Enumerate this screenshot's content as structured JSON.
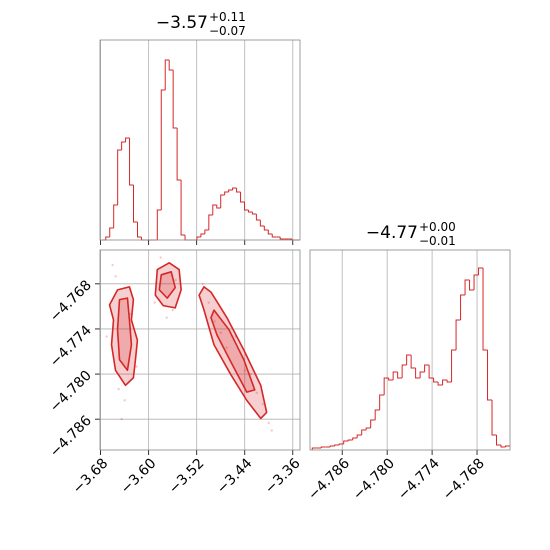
{
  "chart_data": [
    {
      "type": "histogram",
      "title": "−3.57",
      "title_plus": "+0.11",
      "title_minus": "−0.07",
      "color": "#d62728",
      "grid": true,
      "xlim": [
        -3.681,
        -3.348
      ],
      "ylim": [
        0,
        200
      ],
      "xticks": [
        -3.68,
        -3.6,
        -3.52,
        -3.44,
        -3.36
      ],
      "bins": [
        -3.678,
        -3.6714,
        -3.6648,
        -3.6582,
        -3.6516,
        -3.645,
        -3.6384,
        -3.6318,
        -3.6252,
        -3.6186,
        -3.612,
        -3.6054,
        -3.5988,
        -3.5922,
        -3.5856,
        -3.579,
        -3.5724,
        -3.5658,
        -3.5592,
        -3.5526,
        -3.546,
        -3.5394,
        -3.5328,
        -3.5262,
        -3.5196,
        -3.513,
        -3.5064,
        -3.4998,
        -3.4932,
        -3.4866,
        -3.48,
        -3.4734,
        -3.4668,
        -3.4602,
        -3.4536,
        -3.447,
        -3.4404,
        -3.4338,
        -3.4272,
        -3.4206,
        -3.414,
        -3.4074,
        -3.4008,
        -3.3942,
        -3.3876,
        -3.381,
        -3.3744,
        -3.3678,
        -3.3612,
        -3.3546,
        -3.348
      ],
      "counts": [
        0,
        3,
        12,
        35,
        90,
        98,
        102,
        55,
        18,
        3,
        0,
        0,
        0,
        0,
        30,
        150,
        180,
        170,
        112,
        60,
        5,
        0,
        0,
        0,
        3,
        6,
        10,
        25,
        35,
        32,
        45,
        48,
        50,
        52,
        48,
        38,
        30,
        28,
        26,
        20,
        14,
        10,
        6,
        3,
        3,
        1,
        1,
        1,
        0,
        0
      ]
    },
    {
      "type": "contour",
      "color": "#d62728",
      "grid": true,
      "xlim": [
        -3.681,
        -3.348
      ],
      "ylim": [
        -4.7901,
        -4.7635
      ],
      "xticks": [
        {
          "value": -3.68,
          "label": "−3.68"
        },
        {
          "value": -3.6,
          "label": "−3.60"
        },
        {
          "value": -3.52,
          "label": "−3.52"
        },
        {
          "value": -3.44,
          "label": "−3.44"
        },
        {
          "value": -3.36,
          "label": "−3.36"
        }
      ],
      "yticks": [
        {
          "value": -4.768,
          "label": "−4.768"
        },
        {
          "value": -4.774,
          "label": "−4.774"
        },
        {
          "value": -4.78,
          "label": "−4.780"
        },
        {
          "value": -4.786,
          "label": "−4.786"
        }
      ],
      "points": {
        "x": [
          -3.66,
          -3.65,
          -3.67,
          -3.64,
          -3.63,
          -3.655,
          -3.62,
          -3.645,
          -3.58,
          -3.56,
          -3.59,
          -3.555,
          -3.57,
          -3.51,
          -3.5,
          -3.49,
          -3.48,
          -3.47,
          -3.455,
          -3.44,
          -3.43,
          -3.42,
          -3.41,
          -3.4,
          -3.395
        ],
        "y": [
          -4.7655,
          -4.782,
          -4.775,
          -4.7835,
          -4.772,
          -4.767,
          -4.779,
          -4.786,
          -4.7645,
          -4.7715,
          -4.7705,
          -4.7675,
          -4.7725,
          -4.768,
          -4.7705,
          -4.773,
          -4.7745,
          -4.7765,
          -4.775,
          -4.7795,
          -4.78,
          -4.7825,
          -4.784,
          -4.7865,
          -4.7875
        ]
      },
      "contours": [
        {
          "x": [
            -3.6518,
            -3.632,
            -3.6254,
            -3.6287,
            -3.6187,
            -3.622,
            -3.6254,
            -3.6386,
            -3.6552,
            -3.6618,
            -3.6585,
            -3.6651
          ],
          "y": [
            -4.7688,
            -4.7684,
            -4.7701,
            -4.7728,
            -4.7755,
            -4.7781,
            -4.7805,
            -4.7815,
            -4.7795,
            -4.7761,
            -4.7728,
            -4.7708
          ]
        },
        {
          "x": [
            -3.6485,
            -3.6353,
            -3.632,
            -3.6287,
            -3.6353,
            -3.6485,
            -3.6518
          ],
          "y": [
            -4.7701,
            -4.7699,
            -4.7728,
            -4.7761,
            -4.7795,
            -4.7781,
            -4.7741
          ]
        },
        {
          "x": [
            -3.5856,
            -3.5657,
            -3.5492,
            -3.5459,
            -3.5558,
            -3.5757,
            -3.5889
          ],
          "y": [
            -4.7661,
            -4.7652,
            -4.7661,
            -4.7688,
            -4.7712,
            -4.7709,
            -4.7695
          ]
        },
        {
          "x": [
            -3.579,
            -3.5624,
            -3.5558,
            -3.569,
            -3.5823
          ],
          "y": [
            -4.7668,
            -4.7664,
            -4.7685,
            -4.7699,
            -4.7688
          ]
        },
        {
          "x": [
            -3.5078,
            -3.4962,
            -3.4697,
            -3.4415,
            -3.4134,
            -3.4035,
            -3.4134,
            -3.4366,
            -3.463,
            -3.4912,
            -3.5078,
            -3.516
          ],
          "y": [
            -4.7684,
            -4.7691,
            -4.7725,
            -4.7768,
            -4.7815,
            -4.7851,
            -4.7859,
            -4.7835,
            -4.7801,
            -4.7761,
            -4.7715,
            -4.7695
          ]
        },
        {
          "x": [
            -3.4912,
            -3.4663,
            -3.4415,
            -3.4233,
            -3.4366,
            -3.463,
            -3.4862,
            -3.4962
          ],
          "y": [
            -4.7715,
            -4.7741,
            -4.7781,
            -4.7821,
            -4.7824,
            -4.7784,
            -4.7748,
            -4.7725
          ]
        }
      ]
    },
    {
      "type": "histogram",
      "title": "−4.77",
      "title_plus": "+0.00",
      "title_minus": "−0.01",
      "color": "#d62728",
      "grid": true,
      "xlim": [
        -4.7903,
        -4.7636
      ],
      "ylim": [
        0,
        200
      ],
      "xticks": [
        {
          "value": -4.786,
          "label": "−4.786"
        },
        {
          "value": -4.78,
          "label": "−4.780"
        },
        {
          "value": -4.774,
          "label": "−4.774"
        },
        {
          "value": -4.768,
          "label": "−4.768"
        }
      ],
      "bins": [
        -4.79,
        -4.7894,
        -4.7888,
        -4.7882,
        -4.7876,
        -4.787,
        -4.7864,
        -4.7858,
        -4.7852,
        -4.7846,
        -4.784,
        -4.7834,
        -4.7828,
        -4.7822,
        -4.7816,
        -4.781,
        -4.7804,
        -4.7798,
        -4.7792,
        -4.7786,
        -4.778,
        -4.7774,
        -4.7768,
        -4.7762,
        -4.7756,
        -4.775,
        -4.7744,
        -4.7738,
        -4.7732,
        -4.7726,
        -4.772,
        -4.7714,
        -4.7708,
        -4.7702,
        -4.7696,
        -4.769,
        -4.7684,
        -4.7678,
        -4.7672,
        -4.7666,
        -4.766,
        -4.7654,
        -4.7648,
        -4.7642,
        -4.7636
      ],
      "counts": [
        2,
        2,
        3,
        3,
        4,
        5,
        6,
        9,
        10,
        12,
        15,
        20,
        22,
        30,
        40,
        55,
        72,
        70,
        78,
        72,
        85,
        95,
        82,
        72,
        78,
        85,
        72,
        68,
        65,
        70,
        68,
        100,
        130,
        155,
        170,
        160,
        175,
        182,
        100,
        50,
        15,
        5,
        3,
        4
      ]
    }
  ]
}
